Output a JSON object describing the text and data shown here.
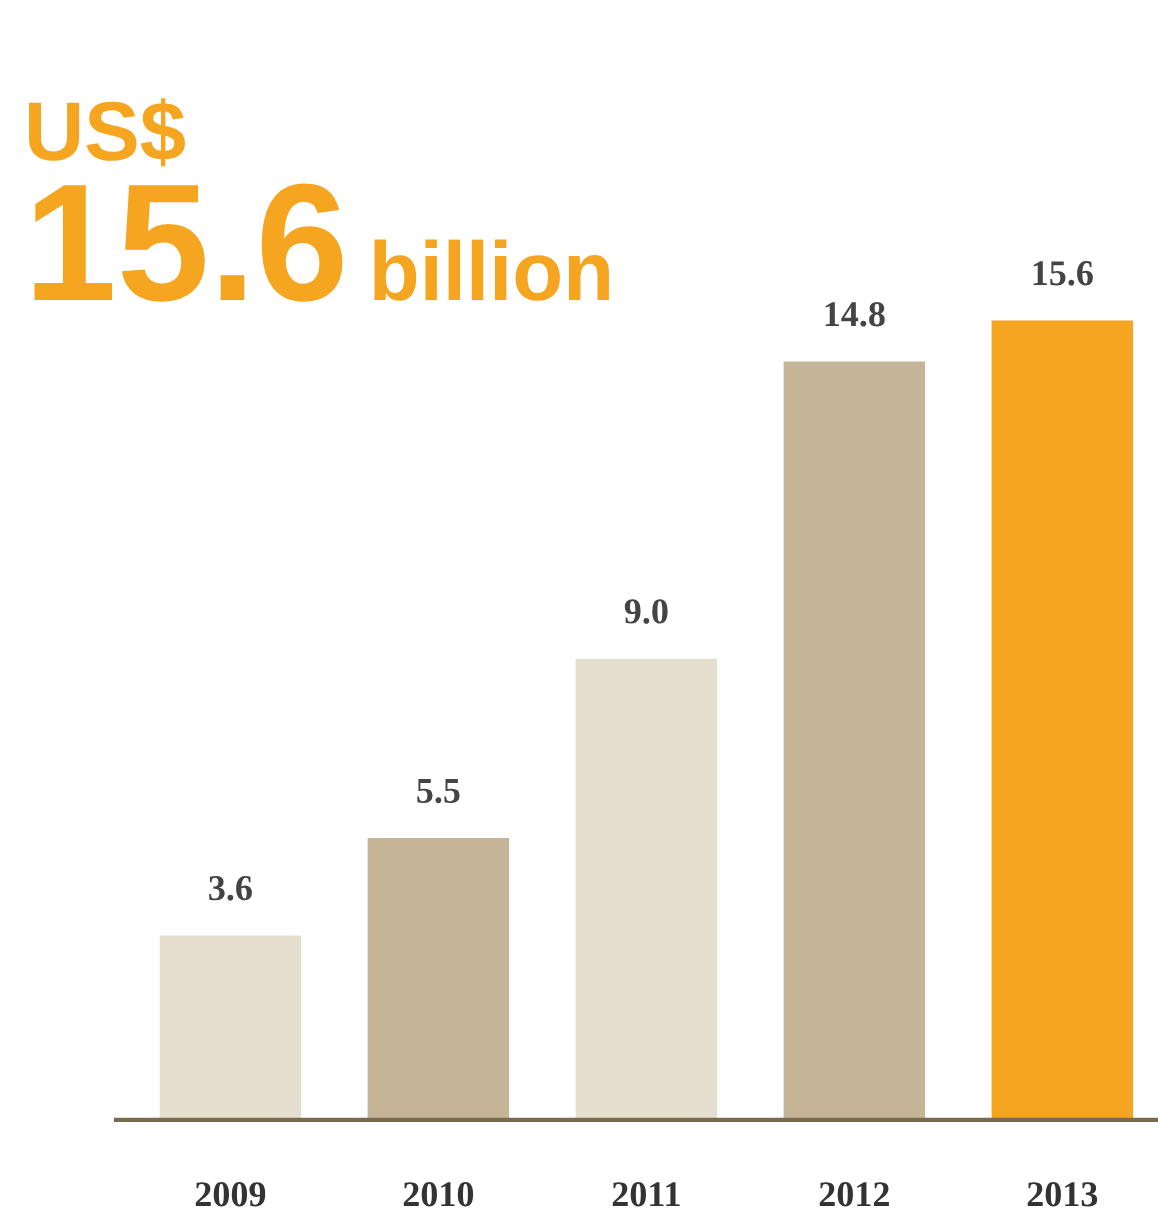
{
  "chart_data": {
    "type": "bar",
    "title": "US$",
    "subtitle": "15.6 billion",
    "categories": [
      "2009",
      "2010",
      "2011",
      "2012",
      "2013"
    ],
    "values": [
      3.6,
      5.5,
      9.0,
      14.8,
      15.6
    ],
    "colors": [
      "#e5dfd0",
      "#c5b496",
      "#e5dfd0",
      "#c5b496",
      "#f5a51f"
    ],
    "value_labels": [
      "3.6",
      "5.5",
      "9.0",
      "14.8",
      "15.6"
    ],
    "grid": false,
    "legend": false
  }
}
